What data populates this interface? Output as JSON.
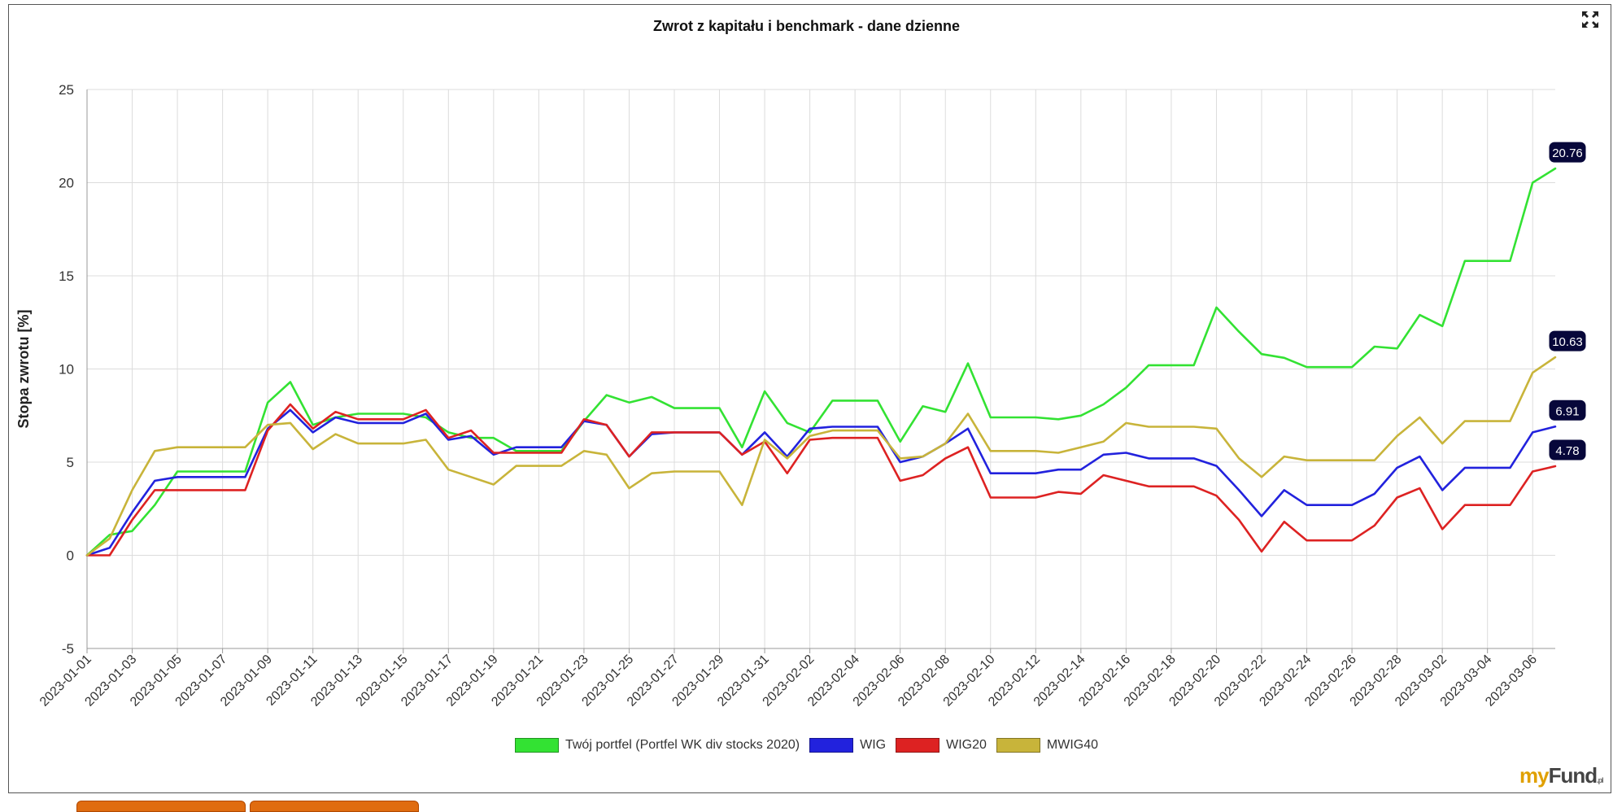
{
  "chart_data": {
    "type": "line",
    "title": "Zwrot z kapitału i benchmark - dane dzienne",
    "ylabel": "Stopa zwrotu [%]",
    "xlabel": "",
    "ylim": [
      -5,
      25
    ],
    "yticks": [
      -5,
      0,
      5,
      10,
      15,
      20,
      25
    ],
    "grid": true,
    "legend_position": "bottom",
    "x": [
      "2023-01-01",
      "2023-01-02",
      "2023-01-03",
      "2023-01-04",
      "2023-01-05",
      "2023-01-06",
      "2023-01-07",
      "2023-01-08",
      "2023-01-09",
      "2023-01-10",
      "2023-01-11",
      "2023-01-12",
      "2023-01-13",
      "2023-01-14",
      "2023-01-15",
      "2023-01-16",
      "2023-01-17",
      "2023-01-18",
      "2023-01-19",
      "2023-01-20",
      "2023-01-21",
      "2023-01-22",
      "2023-01-23",
      "2023-01-24",
      "2023-01-25",
      "2023-01-26",
      "2023-01-27",
      "2023-01-28",
      "2023-01-29",
      "2023-01-30",
      "2023-01-31",
      "2023-02-01",
      "2023-02-02",
      "2023-02-03",
      "2023-02-04",
      "2023-02-05",
      "2023-02-06",
      "2023-02-07",
      "2023-02-08",
      "2023-02-09",
      "2023-02-10",
      "2023-02-11",
      "2023-02-12",
      "2023-02-13",
      "2023-02-14",
      "2023-02-15",
      "2023-02-16",
      "2023-02-17",
      "2023-02-18",
      "2023-02-19",
      "2023-02-20",
      "2023-02-21",
      "2023-02-22",
      "2023-02-23",
      "2023-02-24",
      "2023-02-25",
      "2023-02-26",
      "2023-02-27",
      "2023-02-28",
      "2023-03-01",
      "2023-03-02",
      "2023-03-03",
      "2023-03-04",
      "2023-03-05",
      "2023-03-06",
      "2023-03-07"
    ],
    "x_tick_labels": [
      "2023-01-01",
      "2023-01-03",
      "2023-01-05",
      "2023-01-07",
      "2023-01-09",
      "2023-01-11",
      "2023-01-13",
      "2023-01-15",
      "2023-01-17",
      "2023-01-19",
      "2023-01-21",
      "2023-01-23",
      "2023-01-25",
      "2023-01-27",
      "2023-01-29",
      "2023-01-31",
      "2023-02-02",
      "2023-02-04",
      "2023-02-06",
      "2023-02-08",
      "2023-02-10",
      "2023-02-12",
      "2023-02-14",
      "2023-02-16",
      "2023-02-18",
      "2023-02-20",
      "2023-02-22",
      "2023-02-24",
      "2023-02-26",
      "2023-02-28",
      "2023-03-02",
      "2023-03-04",
      "2023-03-06"
    ],
    "series": [
      {
        "name": "Twój portfel (Portfel WK div stocks 2020)",
        "color": "#33e233",
        "end_label": "20.76",
        "values": [
          0,
          1.1,
          1.3,
          2.7,
          4.5,
          4.5,
          4.5,
          4.5,
          8.2,
          9.3,
          7.0,
          7.4,
          7.6,
          7.6,
          7.6,
          7.4,
          6.6,
          6.3,
          6.3,
          5.6,
          5.6,
          5.6,
          7.2,
          8.6,
          8.2,
          8.5,
          7.9,
          7.9,
          7.9,
          5.8,
          8.8,
          7.1,
          6.6,
          8.3,
          8.3,
          8.3,
          6.1,
          8.0,
          7.7,
          10.3,
          7.4,
          7.4,
          7.4,
          7.3,
          7.5,
          8.1,
          9.0,
          10.2,
          10.2,
          10.2,
          13.3,
          12.0,
          10.8,
          10.6,
          10.1,
          10.1,
          10.1,
          11.2,
          11.1,
          12.9,
          12.3,
          15.8,
          15.8,
          15.8,
          20.0,
          20.76
        ]
      },
      {
        "name": "WIG",
        "color": "#2222dd",
        "end_label": "6.91",
        "values": [
          0,
          0.4,
          2.3,
          4.0,
          4.2,
          4.2,
          4.2,
          4.2,
          6.8,
          7.8,
          6.6,
          7.4,
          7.1,
          7.1,
          7.1,
          7.6,
          6.2,
          6.4,
          5.4,
          5.8,
          5.8,
          5.8,
          7.2,
          7.0,
          5.3,
          6.5,
          6.6,
          6.6,
          6.6,
          5.4,
          6.6,
          5.3,
          6.8,
          6.9,
          6.9,
          6.9,
          5.0,
          5.3,
          6.0,
          6.8,
          4.4,
          4.4,
          4.4,
          4.6,
          4.6,
          5.4,
          5.5,
          5.2,
          5.2,
          5.2,
          4.8,
          3.5,
          2.1,
          3.5,
          2.7,
          2.7,
          2.7,
          3.3,
          4.7,
          5.3,
          3.5,
          4.7,
          4.7,
          4.7,
          6.6,
          6.91
        ]
      },
      {
        "name": "WIG20",
        "color": "#dd2222",
        "end_label": "4.78",
        "values": [
          0,
          0,
          1.9,
          3.5,
          3.5,
          3.5,
          3.5,
          3.5,
          6.7,
          8.1,
          6.8,
          7.7,
          7.3,
          7.3,
          7.3,
          7.8,
          6.3,
          6.7,
          5.5,
          5.5,
          5.5,
          5.5,
          7.3,
          7.0,
          5.3,
          6.6,
          6.6,
          6.6,
          6.6,
          5.4,
          6.1,
          4.4,
          6.2,
          6.3,
          6.3,
          6.3,
          4.0,
          4.3,
          5.2,
          5.8,
          3.1,
          3.1,
          3.1,
          3.4,
          3.3,
          4.3,
          4.0,
          3.7,
          3.7,
          3.7,
          3.2,
          1.9,
          0.2,
          1.8,
          0.8,
          0.8,
          0.8,
          1.6,
          3.1,
          3.6,
          1.4,
          2.7,
          2.7,
          2.7,
          4.5,
          4.78
        ]
      },
      {
        "name": "MWIG40",
        "color": "#c8b43a",
        "end_label": "10.63",
        "values": [
          0,
          0.9,
          3.5,
          5.6,
          5.8,
          5.8,
          5.8,
          5.8,
          7.0,
          7.1,
          5.7,
          6.5,
          6.0,
          6.0,
          6.0,
          6.2,
          4.6,
          4.2,
          3.8,
          4.8,
          4.8,
          4.8,
          5.6,
          5.4,
          3.6,
          4.4,
          4.5,
          4.5,
          4.5,
          2.7,
          6.2,
          5.2,
          6.4,
          6.7,
          6.7,
          6.7,
          5.2,
          5.3,
          6.0,
          7.6,
          5.6,
          5.6,
          5.6,
          5.5,
          5.8,
          6.1,
          7.1,
          6.9,
          6.9,
          6.9,
          6.8,
          5.2,
          4.2,
          5.3,
          5.1,
          5.1,
          5.1,
          5.1,
          6.4,
          7.4,
          6.0,
          7.2,
          7.2,
          7.2,
          9.8,
          10.63
        ]
      }
    ]
  },
  "legend": [
    {
      "label": "Twój portfel (Portfel WK div stocks 2020)",
      "color": "#33e233"
    },
    {
      "label": "WIG",
      "color": "#2222dd"
    },
    {
      "label": "WIG20",
      "color": "#dd2222"
    },
    {
      "label": "MWIG40",
      "color": "#c8b43a"
    }
  ],
  "logo": {
    "part1": "my",
    "part2": "Fund",
    "suffix": ".pl"
  },
  "icons": {
    "expand": "expand-icon"
  }
}
